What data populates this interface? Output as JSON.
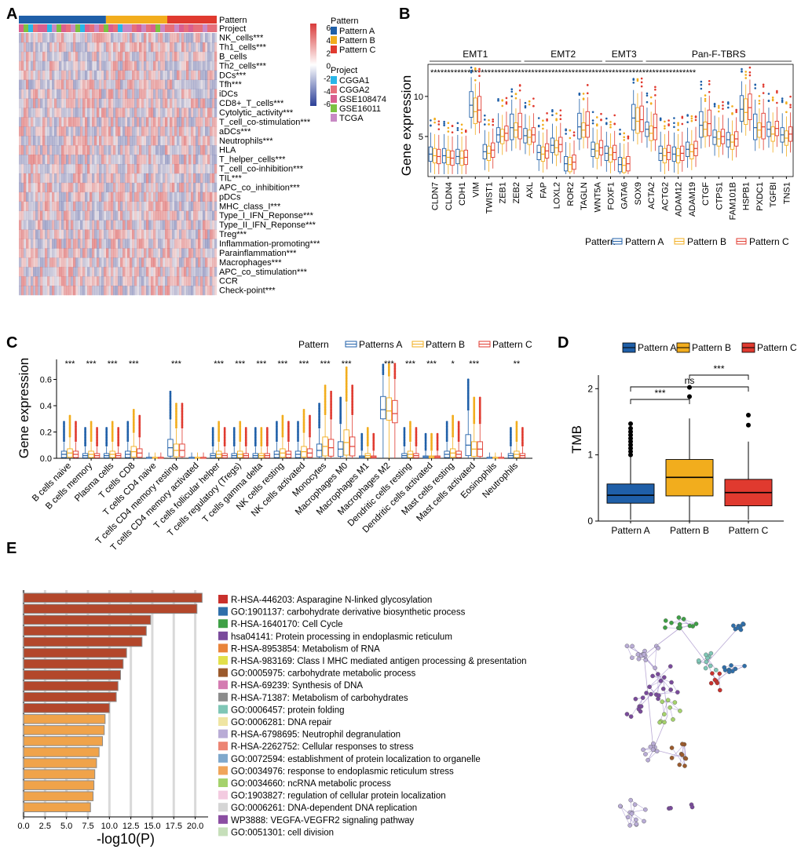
{
  "panel_labels": [
    "A",
    "B",
    "C",
    "D",
    "E"
  ],
  "colors": {
    "pattern_a": "#1f5fa8",
    "pattern_b": "#f2ad1d",
    "pattern_c": "#e03a2f",
    "heat_high": "#d93b3b",
    "heat_low": "#2c3f97",
    "cgga1": "#29b6e8",
    "cgga2": "#e66f7b",
    "gse108474": "#d95f8f",
    "gse16011": "#7cc242",
    "tcga": "#c889c4",
    "bar_dark": "#b3472b",
    "bar_light": "#f0a34a"
  },
  "chart_data": [
    {
      "panel": "A",
      "type": "heatmap",
      "annotation_labels": [
        "Pattern",
        "Project"
      ],
      "rows": [
        "NK_cells***",
        "Th1_cells***",
        "B_cells",
        "Th2_cells***",
        "DCs***",
        "Tfh***",
        "iDCs",
        "CD8+_T_cells***",
        "Cytolytic_activity***",
        "T_cell_co-stimulation***",
        "aDCs***",
        "Neutrophils***",
        "HLA",
        "T_helper_cells***",
        "T_cell_co-inhibition***",
        "TIL***",
        "APC_co_inhibition***",
        "pDCs",
        "MHC_class_I***",
        "Type_I_IFN_Reponse***",
        "Type_II_IFN_Reponse***",
        "Treg***",
        "Inflammation-promoting***",
        "Parainflammation***",
        "Macrophages***",
        "APC_co_stimulation***",
        "CCR",
        "Check-point***"
      ],
      "pattern_fraction": [
        0.44,
        0.31,
        0.25
      ],
      "colorbar_ticks": [
        "6",
        "4",
        "2",
        "0",
        "-2",
        "-4",
        "-6"
      ],
      "legend_pattern_title": "Pattern",
      "legend_pattern": [
        "Pattern A",
        "Pattern B",
        "Pattern C"
      ],
      "legend_project_title": "Project",
      "legend_project": [
        "CGGA1",
        "CGGA2",
        "GSE108474",
        "GSE16011",
        "TCGA"
      ]
    },
    {
      "panel": "B",
      "type": "box",
      "ylabel": "Gene expression",
      "ylim": [
        0,
        14
      ],
      "yticks": [
        "5",
        "10"
      ],
      "groups": [
        {
          "name": "EMT1",
          "genes": [
            "CLDN7",
            "CLDN4",
            "CDH1",
            "VIM",
            "TWIST1",
            "ZEB1",
            "ZEB2"
          ]
        },
        {
          "name": "EMT2",
          "genes": [
            "AXL",
            "FAP",
            "LOXL2",
            "ROR2",
            "TAGLN",
            "WNT5A"
          ]
        },
        {
          "name": "EMT3",
          "genes": [
            "FOXF1",
            "GATA6",
            "SOX9"
          ]
        },
        {
          "name": "Pan-F-TBRS",
          "genes": [
            "ACTA2",
            "ACTG2",
            "ADAM12",
            "ADAM19",
            "CTGF",
            "CTPS1",
            "FAM101B",
            "HSPB1",
            "PXDC1",
            "TGFBI",
            "TNS1"
          ]
        }
      ],
      "significance_row": "*******************************************************************************",
      "medians": {
        "CLDN7": [
          2.8,
          2.6,
          2.5
        ],
        "CLDN4": [
          2.6,
          2.4,
          2.3
        ],
        "CDH1": [
          2.5,
          2.3,
          2.4
        ],
        "VIM": [
          8.9,
          8.1,
          8.3
        ],
        "TWIST1": [
          3.1,
          2.9,
          3.3
        ],
        "ZEB1": [
          5.2,
          5.0,
          5.4
        ],
        "ZEB2": [
          6.1,
          5.8,
          6.2
        ],
        "AXL": [
          5.1,
          4.9,
          5.2
        ],
        "FAP": [
          3.0,
          2.8,
          3.2
        ],
        "LOXL2": [
          3.9,
          3.6,
          4.0
        ],
        "ROR2": [
          1.6,
          1.5,
          1.8
        ],
        "TAGLN": [
          6.2,
          5.8,
          6.4
        ],
        "WNT5A": [
          3.4,
          3.2,
          3.6
        ],
        "FOXF1": [
          2.9,
          2.7,
          3.0
        ],
        "GATA6": [
          1.5,
          1.4,
          1.6
        ],
        "SOX9": [
          7.3,
          6.9,
          7.1
        ],
        "ACTA2": [
          5.9,
          5.4,
          6.1
        ],
        "ACTG2": [
          2.9,
          2.6,
          3.0
        ],
        "ADAM12": [
          2.8,
          2.6,
          2.9
        ],
        "ADAM19": [
          3.4,
          3.1,
          3.5
        ],
        "CTGF": [
          6.4,
          5.9,
          6.6
        ],
        "CTPS1": [
          4.9,
          4.7,
          5.0
        ],
        "FAM101B": [
          4.6,
          4.3,
          4.7
        ],
        "HSPB1": [
          8.4,
          8.0,
          8.6
        ],
        "PXDC1": [
          6.1,
          5.8,
          6.2
        ],
        "TGFBI": [
          5.9,
          5.3,
          6.0
        ],
        "TNS1": [
          5.2,
          4.8,
          5.3
        ]
      },
      "legend_title": "Pattern",
      "legend": [
        "Pattern A",
        "Pattern B",
        "Pattern C"
      ]
    },
    {
      "panel": "C",
      "type": "box",
      "ylabel": "Gene expression",
      "ylim": [
        0,
        0.8
      ],
      "yticks": [
        "0.0",
        "0.2",
        "0.4",
        "0.6"
      ],
      "legend_title": "Pattern",
      "legend": [
        "Patterns A",
        "Pattern B",
        "Pattern C"
      ],
      "categories": [
        "B cells naive",
        "B cells memory",
        "Plasma cells",
        "T cells CD8",
        "T cells CD4 naive",
        "T cells CD4 memory resting",
        "T cells CD4 memory activated",
        "T cells follicular helper",
        "T cells regulatory (Tregs)",
        "T cells gamma delta",
        "NK cells resting",
        "NK cells activated",
        "Monocytes",
        "Macrophages M0",
        "Macrophages M1",
        "Macrophages M2",
        "Dendritic cells resting",
        "Dendritic cells activated",
        "Mast cells resting",
        "Mast cells activated",
        "Eosinophils",
        "Neutrophils"
      ],
      "significance": [
        "***",
        "***",
        "***",
        "***",
        "",
        "***",
        "",
        "***",
        "***",
        "***",
        "***",
        "***",
        "***",
        "***",
        "",
        "***",
        "***",
        "***",
        "*",
        "***",
        "",
        "**"
      ],
      "medians": [
        [
          0.03,
          0.04,
          0.03
        ],
        [
          0.02,
          0.03,
          0.02
        ],
        [
          0.02,
          0.03,
          0.02
        ],
        [
          0.03,
          0.05,
          0.04
        ],
        [
          0.0,
          0.0,
          0.0
        ],
        [
          0.08,
          0.06,
          0.06
        ],
        [
          0.0,
          0.0,
          0.0
        ],
        [
          0.02,
          0.03,
          0.02
        ],
        [
          0.02,
          0.03,
          0.02
        ],
        [
          0.02,
          0.02,
          0.02
        ],
        [
          0.03,
          0.04,
          0.03
        ],
        [
          0.03,
          0.05,
          0.04
        ],
        [
          0.06,
          0.09,
          0.08
        ],
        [
          0.07,
          0.12,
          0.09
        ],
        [
          0.01,
          0.02,
          0.01
        ],
        [
          0.37,
          0.36,
          0.34
        ],
        [
          0.02,
          0.03,
          0.02
        ],
        [
          0.01,
          0.01,
          0.01
        ],
        [
          0.03,
          0.04,
          0.03
        ],
        [
          0.1,
          0.07,
          0.07
        ],
        [
          0.0,
          0.0,
          0.0
        ],
        [
          0.02,
          0.03,
          0.02
        ]
      ]
    },
    {
      "panel": "D",
      "type": "box",
      "ylabel": "TMB",
      "ylim": [
        0,
        2.3
      ],
      "yticks": [
        "0",
        "1",
        "2"
      ],
      "categories": [
        "Pattern A",
        "Pattern B",
        "Pattern C"
      ],
      "boxes": [
        {
          "q1": 0.27,
          "median": 0.39,
          "q3": 0.56,
          "lower": 0.02,
          "upper": 0.97,
          "outliers": [
            1.0,
            1.05,
            1.1,
            1.15,
            1.2,
            1.25,
            1.3,
            1.35,
            1.4,
            1.47
          ]
        },
        {
          "q1": 0.38,
          "median": 0.66,
          "q3": 0.93,
          "lower": 0.0,
          "upper": 1.55,
          "outliers": [
            1.88,
            2.02
          ]
        },
        {
          "q1": 0.23,
          "median": 0.43,
          "q3": 0.63,
          "lower": 0.02,
          "upper": 1.2,
          "outliers": [
            1.45,
            1.6
          ]
        }
      ],
      "comparisons": [
        {
          "from": 0,
          "to": 1,
          "label": "***"
        },
        {
          "from": 0,
          "to": 2,
          "label": "ns"
        },
        {
          "from": 1,
          "to": 2,
          "label": "***"
        }
      ],
      "legend_title": "",
      "legend": [
        "Pattern A",
        "Pattern B",
        "Pattern C"
      ]
    },
    {
      "panel": "E",
      "type": "bar",
      "orientation": "horizontal",
      "xlabel": "-log10(P)",
      "xticks": [
        "0.0",
        "2.5",
        "5.0",
        "7.5",
        "10.0",
        "12.5",
        "15.0",
        "17.5",
        "20.0"
      ],
      "xlim": [
        0,
        21.5
      ],
      "values": [
        20.8,
        20.2,
        14.8,
        14.3,
        13.8,
        12.0,
        11.6,
        11.3,
        11.0,
        10.8,
        10.0,
        9.5,
        9.4,
        9.2,
        8.8,
        8.5,
        8.3,
        8.2,
        8.1,
        7.8
      ],
      "terms": [
        "R-HSA-446203: Asparagine N-linked glycosylation",
        "GO:1901137: carbohydrate derivative biosynthetic process",
        "R-HSA-1640170: Cell Cycle",
        "hsa04141: Protein processing in endoplasmic reticulum",
        "R-HSA-8953854: Metabolism of RNA",
        "R-HSA-983169: Class I MHC mediated antigen processing & presentation",
        "GO:0005975: carbohydrate metabolic process",
        "R-HSA-69239: Synthesis of DNA",
        "R-HSA-71387: Metabolism of carbohydrates",
        "GO:0006457: protein folding",
        "GO:0006281: DNA repair",
        "R-HSA-6798695: Neutrophil degranulation",
        "R-HSA-2262752: Cellular responses to stress",
        "GO:0072594: establishment of protein localization to organelle",
        "GO:0034976: response to endoplasmic reticulum stress",
        "GO:0034660: ncRNA metabolic process",
        "GO:1903827: regulation of cellular protein localization",
        "GO:0006261: DNA-dependent DNA replication",
        "WP3888: VEGFA-VEGFR2 signaling pathway",
        "GO:0051301: cell division"
      ],
      "term_colors": [
        "#c9302c",
        "#2f6faa",
        "#3fa046",
        "#7a4b9c",
        "#e9843a",
        "#e2e04b",
        "#9b5a2c",
        "#d47bb1",
        "#8c8c8c",
        "#7fc6b6",
        "#efe5a3",
        "#b9acd6",
        "#ec8574",
        "#7fa8cc",
        "#f0a55a",
        "#a5d26c",
        "#f3cbe0",
        "#d5d5d5",
        "#8b4ea2",
        "#c6dfba"
      ]
    }
  ]
}
